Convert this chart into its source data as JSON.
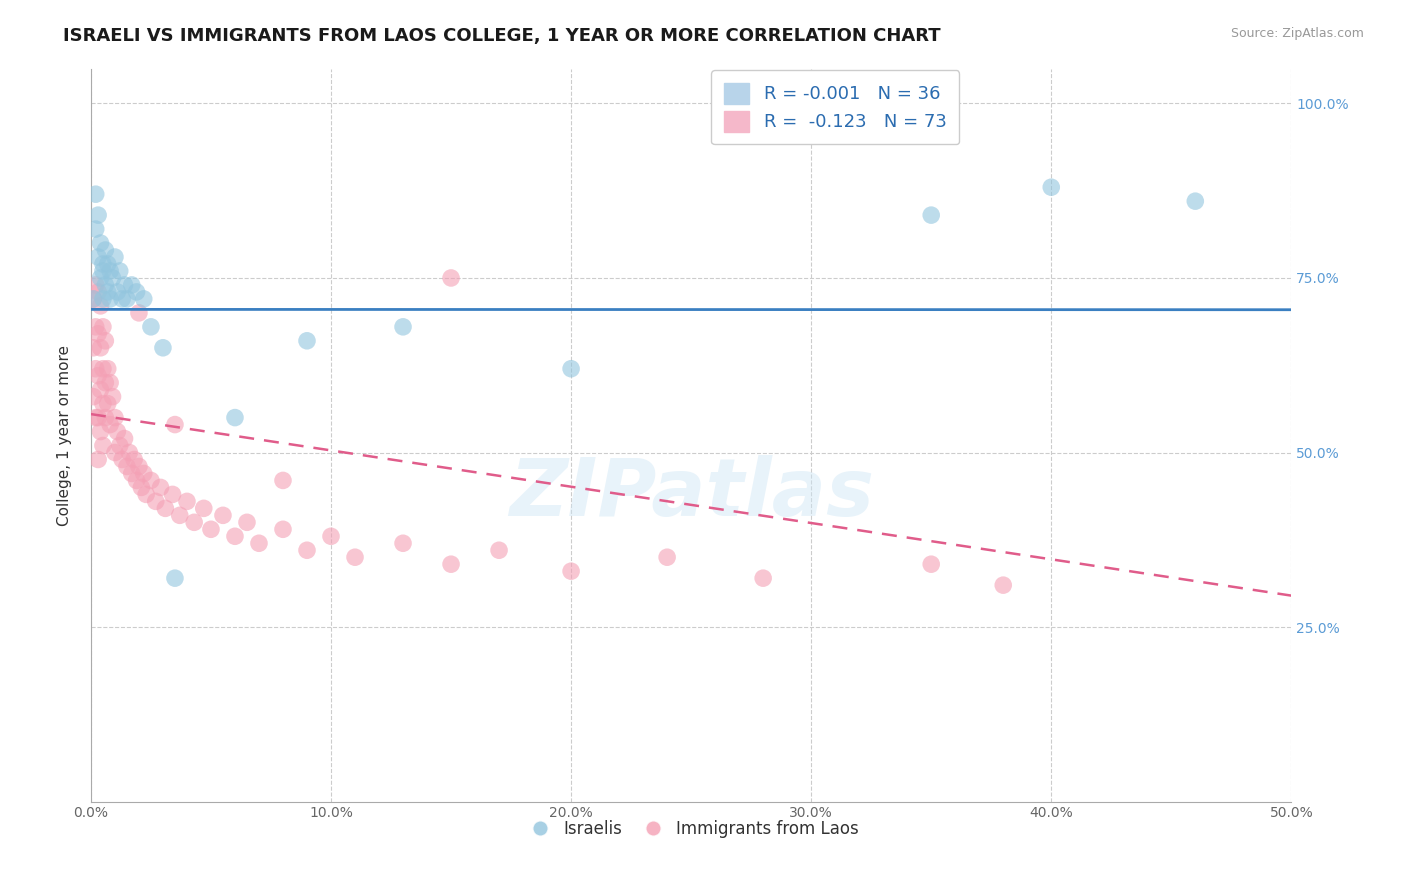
{
  "title": "ISRAELI VS IMMIGRANTS FROM LAOS COLLEGE, 1 YEAR OR MORE CORRELATION CHART",
  "source_text": "Source: ZipAtlas.com",
  "ylabel_label": "College, 1 year or more",
  "xlim": [
    0.0,
    0.5
  ],
  "ylim": [
    0.0,
    1.05
  ],
  "legend_r1": "R = -0.001   N = 36",
  "legend_r2": "R =  -0.123   N = 73",
  "legend_label1": "Israelis",
  "legend_label2": "Immigrants from Laos",
  "blue_color": "#92c5de",
  "pink_color": "#f4a0b5",
  "blue_line_color": "#3a7fc1",
  "pink_line_color": "#e05c8a",
  "blue_line_intercept": 0.705,
  "blue_line_slope": -0.001,
  "pink_line_intercept": 0.555,
  "pink_line_slope": -0.52,
  "israelis_x": [
    0.001,
    0.002,
    0.002,
    0.003,
    0.003,
    0.004,
    0.004,
    0.005,
    0.005,
    0.005,
    0.006,
    0.006,
    0.007,
    0.007,
    0.008,
    0.008,
    0.009,
    0.01,
    0.011,
    0.012,
    0.013,
    0.014,
    0.015,
    0.017,
    0.019,
    0.022,
    0.025,
    0.03,
    0.035,
    0.06,
    0.09,
    0.13,
    0.2,
    0.35,
    0.4,
    0.46
  ],
  "israelis_y": [
    0.72,
    0.82,
    0.87,
    0.78,
    0.84,
    0.75,
    0.8,
    0.76,
    0.72,
    0.77,
    0.74,
    0.79,
    0.73,
    0.77,
    0.76,
    0.72,
    0.75,
    0.78,
    0.73,
    0.76,
    0.72,
    0.74,
    0.72,
    0.74,
    0.73,
    0.72,
    0.68,
    0.65,
    0.32,
    0.55,
    0.66,
    0.68,
    0.62,
    0.84,
    0.88,
    0.86
  ],
  "laos_x": [
    0.001,
    0.001,
    0.001,
    0.002,
    0.002,
    0.002,
    0.002,
    0.003,
    0.003,
    0.003,
    0.003,
    0.003,
    0.004,
    0.004,
    0.004,
    0.004,
    0.005,
    0.005,
    0.005,
    0.005,
    0.006,
    0.006,
    0.006,
    0.007,
    0.007,
    0.008,
    0.008,
    0.009,
    0.01,
    0.01,
    0.011,
    0.012,
    0.013,
    0.014,
    0.015,
    0.016,
    0.017,
    0.018,
    0.019,
    0.02,
    0.021,
    0.022,
    0.023,
    0.025,
    0.027,
    0.029,
    0.031,
    0.034,
    0.037,
    0.04,
    0.043,
    0.047,
    0.05,
    0.055,
    0.06,
    0.065,
    0.07,
    0.08,
    0.09,
    0.1,
    0.11,
    0.13,
    0.15,
    0.17,
    0.2,
    0.24,
    0.28,
    0.35,
    0.38,
    0.15,
    0.02,
    0.035,
    0.08
  ],
  "laos_y": [
    0.72,
    0.65,
    0.58,
    0.74,
    0.68,
    0.62,
    0.55,
    0.73,
    0.67,
    0.61,
    0.55,
    0.49,
    0.71,
    0.65,
    0.59,
    0.53,
    0.68,
    0.62,
    0.57,
    0.51,
    0.66,
    0.6,
    0.55,
    0.62,
    0.57,
    0.6,
    0.54,
    0.58,
    0.55,
    0.5,
    0.53,
    0.51,
    0.49,
    0.52,
    0.48,
    0.5,
    0.47,
    0.49,
    0.46,
    0.48,
    0.45,
    0.47,
    0.44,
    0.46,
    0.43,
    0.45,
    0.42,
    0.44,
    0.41,
    0.43,
    0.4,
    0.42,
    0.39,
    0.41,
    0.38,
    0.4,
    0.37,
    0.39,
    0.36,
    0.38,
    0.35,
    0.37,
    0.34,
    0.36,
    0.33,
    0.35,
    0.32,
    0.34,
    0.31,
    0.75,
    0.7,
    0.54,
    0.46
  ],
  "watermark_text": "ZIPatlas",
  "title_fontsize": 13,
  "axis_label_fontsize": 11,
  "tick_fontsize": 10,
  "source_fontsize": 9,
  "right_ytick_color": "#5b9bd5",
  "left_spine_color": "#aaaaaa",
  "bottom_spine_color": "#aaaaaa",
  "grid_color": "#cccccc"
}
